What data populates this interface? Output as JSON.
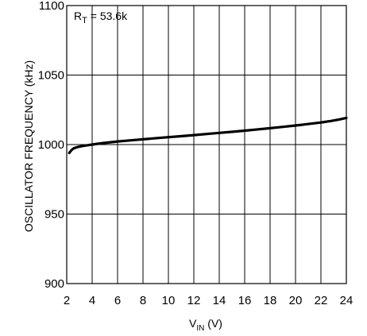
{
  "chart_data": {
    "type": "line",
    "title": "",
    "ylabel": "OSCILLATOR FREQUENCY (kHz)",
    "xlabel_main": "V",
    "xlabel_sub": "IN",
    "xlabel_unit": " (V)",
    "annotation_main": "R",
    "annotation_sub": "T",
    "annotation_value": " = 53.6k",
    "xlim": [
      2,
      24
    ],
    "ylim": [
      900,
      1100
    ],
    "x_ticks": [
      2,
      4,
      6,
      8,
      10,
      12,
      14,
      16,
      18,
      20,
      22,
      24
    ],
    "x_tick_labels": [
      "2",
      "4",
      "6",
      "8",
      "10",
      "12",
      "14",
      "16",
      "18",
      "20",
      "22",
      "24"
    ],
    "y_ticks": [
      900,
      950,
      1000,
      1050,
      1100
    ],
    "y_tick_labels": [
      "900",
      "950",
      "1000",
      "1050",
      "1100"
    ],
    "grid": true,
    "series": [
      {
        "x": [
          2.2,
          2.5,
          3.0,
          3.5,
          4.0,
          5.0,
          6.0,
          8.0,
          10.0,
          12.0,
          14.0,
          16.0,
          18.0,
          20.0,
          22.0,
          23.0,
          24.0
        ],
        "y": [
          994,
          997,
          998.5,
          999.3,
          1000,
          1001.2,
          1002.2,
          1003.8,
          1005.3,
          1006.8,
          1008.4,
          1010,
          1011.8,
          1013.7,
          1015.9,
          1017.3,
          1019.2
        ]
      }
    ]
  }
}
